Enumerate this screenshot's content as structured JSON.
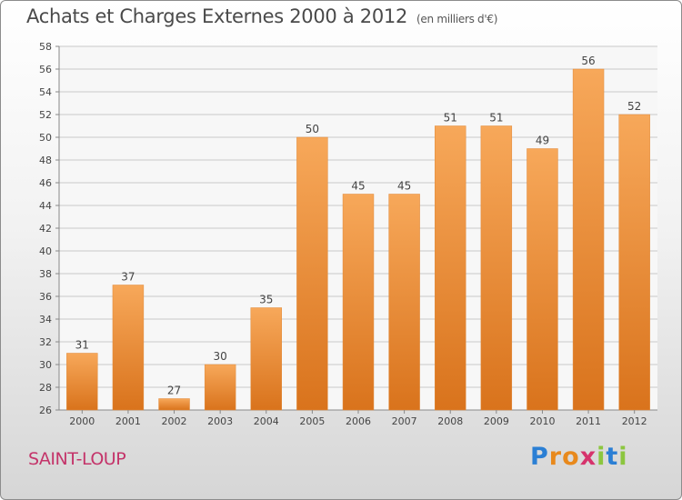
{
  "header": {
    "title": "Achats et Charges Externes 2000 à 2012",
    "unit": "(en milliers d'€)"
  },
  "footer": {
    "city": "SAINT-LOUP",
    "logo": {
      "letters": [
        "P",
        "r",
        "o",
        "x",
        "i",
        "t",
        "i"
      ],
      "colors": [
        "#2b7fd4",
        "#e8891c",
        "#e8891c",
        "#d6336c",
        "#8cc63f",
        "#2b7fd4",
        "#8cc63f"
      ]
    }
  },
  "colors": {
    "bar_light": "#f7a85a",
    "bar_dark": "#d9731c",
    "grid": "#c8c8c8",
    "axis_text": "#444444"
  },
  "chart_data": {
    "type": "bar",
    "categories": [
      "2000",
      "2001",
      "2002",
      "2003",
      "2004",
      "2005",
      "2006",
      "2007",
      "2008",
      "2009",
      "2010",
      "2011",
      "2012"
    ],
    "values": [
      31,
      37,
      27,
      30,
      35,
      50,
      45,
      45,
      51,
      51,
      49,
      56,
      52
    ],
    "data_labels": [
      "31",
      "37",
      "27",
      "30",
      "35",
      "50",
      "45",
      "45",
      "51",
      "51",
      "49",
      "56",
      "52"
    ],
    "ylim": [
      26,
      58
    ],
    "yticks": [
      "26",
      "28",
      "30",
      "32",
      "34",
      "36",
      "38",
      "40",
      "42",
      "44",
      "46",
      "48",
      "50",
      "52",
      "54",
      "56",
      "58"
    ],
    "title": "Achats et Charges Externes 2000 à 2012",
    "xlabel": "",
    "ylabel": "",
    "grid": true
  }
}
